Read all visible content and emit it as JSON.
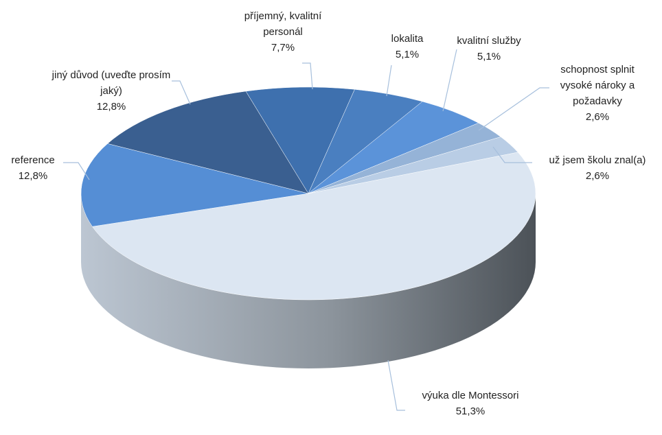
{
  "chart_data": {
    "type": "pie",
    "categories": [
      "výuka dle Montessori",
      "reference",
      "jiný důvod (uveďte prosím jaký)",
      "příjemný, kvalitní personál",
      "lokalita",
      "kvalitní služby",
      "schopnost splnit vysoké nároky a požadavky",
      "už jsem školu znal(a)"
    ],
    "values": [
      51.3,
      12.8,
      12.8,
      7.7,
      5.1,
      5.1,
      2.6,
      2.6
    ],
    "value_labels": [
      "51,3%",
      "12,8%",
      "12,8%",
      "7,7%",
      "5,1%",
      "5,1%",
      "2,6%",
      "2,6%"
    ],
    "colors": [
      "#dce6f2",
      "#558ed5",
      "#3a5f90",
      "#3e70ae",
      "#4a7fc0",
      "#5b93d9",
      "#95b3d7",
      "#b9cde5"
    ]
  }
}
